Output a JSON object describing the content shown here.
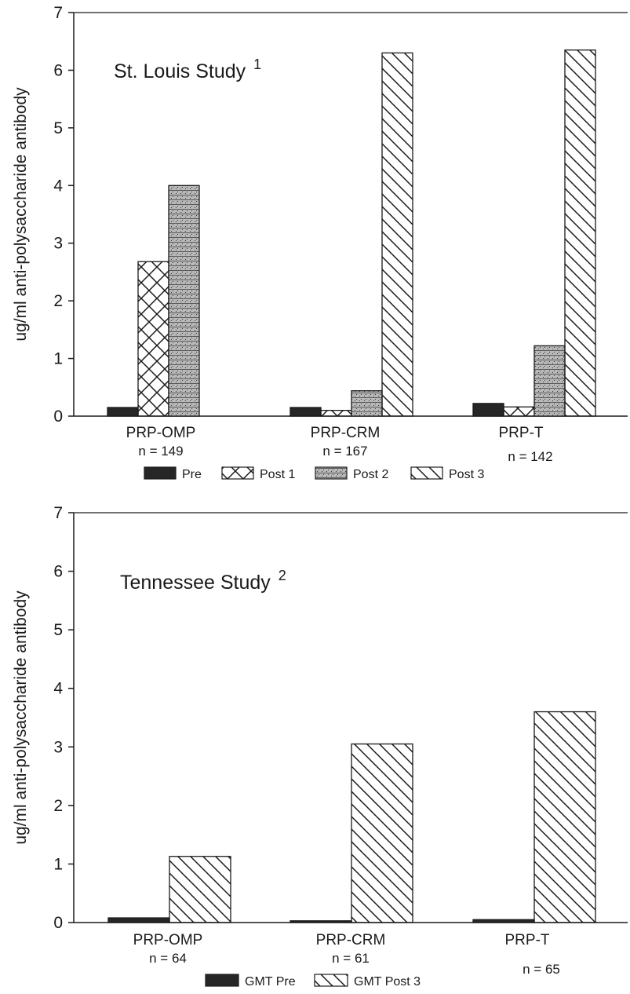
{
  "chart_data": [
    {
      "type": "bar",
      "title": "St. Louis Study",
      "title_superscript": "1",
      "ylabel": "ug/ml anti-polysaccharide antibody",
      "xlabel": "",
      "ylim": [
        0,
        7
      ],
      "yticks": [
        "0",
        "1",
        "2",
        "3",
        "4",
        "5",
        "6",
        "7"
      ],
      "grid": false,
      "legend_position": "bottom",
      "categories": [
        "PRP-OMP",
        "PRP-CRM",
        "PRP-T"
      ],
      "category_n": [
        "n = 149",
        "n = 167",
        "n = 142"
      ],
      "series": [
        {
          "name": "Pre",
          "pattern": "solid",
          "values": [
            0.15,
            0.15,
            0.22
          ]
        },
        {
          "name": "Post 1",
          "pattern": "crosshatch",
          "values": [
            2.68,
            0.1,
            0.16
          ]
        },
        {
          "name": "Post 2",
          "pattern": "stipple",
          "values": [
            4.0,
            0.44,
            1.22
          ]
        },
        {
          "name": "Post 3",
          "pattern": "diagonal",
          "values": [
            null,
            6.3,
            6.35
          ]
        }
      ]
    },
    {
      "type": "bar",
      "title": "Tennessee Study",
      "title_superscript": "2",
      "ylabel": "ug/ml anti-polysaccharide antibody",
      "xlabel": "",
      "ylim": [
        0,
        7
      ],
      "yticks": [
        "0",
        "1",
        "2",
        "3",
        "4",
        "5",
        "6",
        "7"
      ],
      "grid": false,
      "legend_position": "bottom",
      "categories": [
        "PRP-OMP",
        "PRP-CRM",
        "PRP-T"
      ],
      "category_n": [
        "n = 64",
        "n = 61",
        "n = 65"
      ],
      "series": [
        {
          "name": "GMT Pre",
          "pattern": "solid",
          "values": [
            0.08,
            0.03,
            0.05
          ]
        },
        {
          "name": "GMT Post 3",
          "pattern": "diagonal",
          "values": [
            1.13,
            3.05,
            3.6
          ]
        }
      ]
    }
  ],
  "colors": {
    "ink": "#1a1a1a",
    "pre_fill": "#262626",
    "background": "#ffffff"
  }
}
